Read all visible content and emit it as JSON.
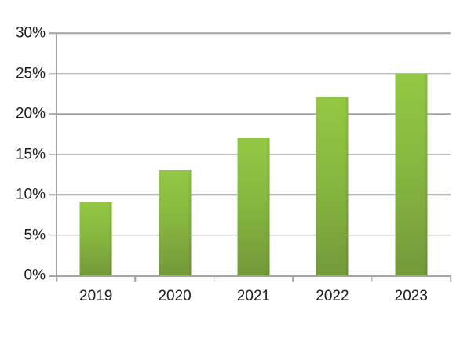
{
  "chart_data": {
    "type": "bar",
    "categories": [
      "2019",
      "2020",
      "2021",
      "2022",
      "2023"
    ],
    "values": [
      9,
      13,
      17,
      22,
      25
    ],
    "title": "",
    "xlabel": "",
    "ylabel": "",
    "ylim": [
      0,
      30
    ],
    "ytick_step": 5,
    "ytick_labels": [
      "0%",
      "5%",
      "10%",
      "15%",
      "20%",
      "25%",
      "30%"
    ],
    "grid": true,
    "legend": false,
    "colors": {
      "bar_gradient_top": "#93c843",
      "bar_gradient_mid": "#85b63f",
      "bar_gradient_bottom": "#73993a",
      "grid_line": "#a3a3a3",
      "axis_line": "#a3a3a3",
      "tick_label": "#1c1c1c",
      "background": "#ffffff"
    }
  }
}
